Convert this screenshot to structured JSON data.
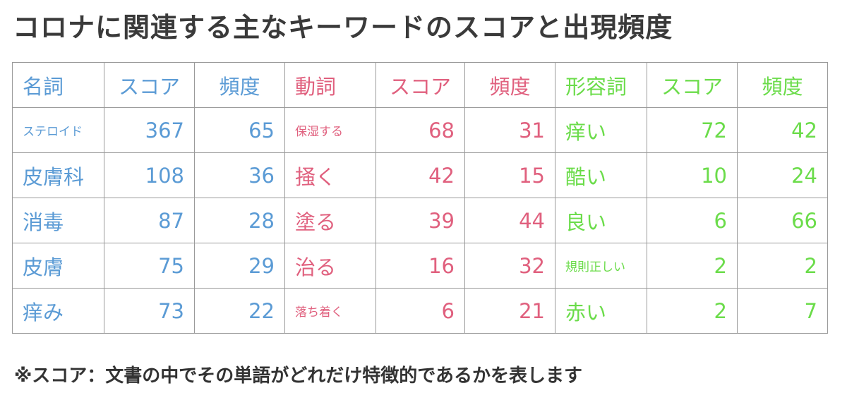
{
  "title": "コロナに関連する主なキーワードのスコアと出現頻度",
  "footnote": "※スコア：文書の中でその単語がどれだけ特徴的であるかを表します",
  "colors": {
    "noun": "#5b9bd5",
    "verb": "#e0607e",
    "adjective": "#6bdc4a",
    "grid": "#9a9a9a",
    "title": "#3a3a3a"
  },
  "chart_data": {
    "type": "table",
    "title": "コロナに関連する主なキーワードのスコアと出現頻度",
    "columns": [
      "名詞",
      "スコア",
      "頻度",
      "動詞",
      "スコア",
      "頻度",
      "形容詞",
      "スコア",
      "頻度"
    ],
    "groups": [
      {
        "name": "名詞",
        "color": "#5b9bd5",
        "rows": [
          {
            "word": "ステロイド",
            "score": 367,
            "freq": 65
          },
          {
            "word": "皮膚科",
            "score": 108,
            "freq": 36
          },
          {
            "word": "消毒",
            "score": 87,
            "freq": 28
          },
          {
            "word": "皮膚",
            "score": 75,
            "freq": 29
          },
          {
            "word": "痒み",
            "score": 73,
            "freq": 22
          }
        ]
      },
      {
        "name": "動詞",
        "color": "#e0607e",
        "rows": [
          {
            "word": "保湿する",
            "score": 68,
            "freq": 31
          },
          {
            "word": "掻く",
            "score": 42,
            "freq": 15
          },
          {
            "word": "塗る",
            "score": 39,
            "freq": 44
          },
          {
            "word": "治る",
            "score": 16,
            "freq": 32
          },
          {
            "word": "落ち着く",
            "score": 6,
            "freq": 21
          }
        ]
      },
      {
        "name": "形容詞",
        "color": "#6bdc4a",
        "rows": [
          {
            "word": "痒い",
            "score": 72,
            "freq": 42
          },
          {
            "word": "酷い",
            "score": 10,
            "freq": 24
          },
          {
            "word": "良い",
            "score": 6,
            "freq": 66
          },
          {
            "word": "規則正しい",
            "score": 2,
            "freq": 2
          },
          {
            "word": "赤い",
            "score": 2,
            "freq": 7
          }
        ]
      }
    ]
  }
}
